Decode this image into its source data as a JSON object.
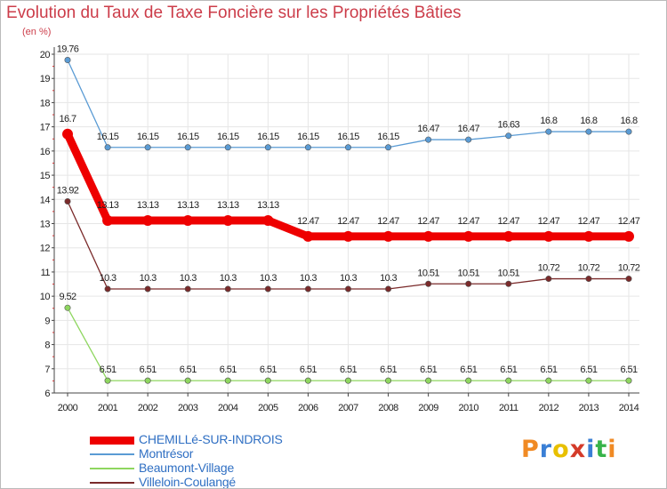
{
  "title": "Evolution du Taux de Taxe Foncière sur les Propriétés Bâties",
  "unit": "(en %)",
  "logo": {
    "text": "Proxiti",
    "letters": [
      "P",
      "r",
      "o",
      "x",
      "i",
      "t",
      "i"
    ],
    "colors": [
      "#f08a24",
      "#3a7fd5",
      "#e8c000",
      "#d43b2a",
      "#3a7fd5",
      "#38b44a",
      "#f08a24"
    ]
  },
  "chart_data": {
    "type": "line",
    "x": [
      "2000",
      "2001",
      "2002",
      "2003",
      "2004",
      "2005",
      "2006",
      "2007",
      "2008",
      "2009",
      "2010",
      "2011",
      "2012",
      "2013",
      "2014"
    ],
    "ylim": [
      6,
      20
    ],
    "yticks": [
      6,
      7,
      8,
      9,
      10,
      11,
      12,
      13,
      14,
      15,
      16,
      17,
      18,
      19,
      20
    ],
    "series": [
      {
        "name": "CHEMILLé-SUR-INDROIS",
        "color": "#ee0000",
        "width": "thick",
        "values": [
          16.7,
          13.13,
          13.13,
          13.13,
          13.13,
          13.13,
          12.47,
          12.47,
          12.47,
          12.47,
          12.47,
          12.47,
          12.47,
          12.47,
          12.47
        ],
        "labels": [
          "16.7",
          "13.13",
          "13.13",
          "13.13",
          "13.13",
          "13.13",
          "12.47",
          "12.47",
          "12.47",
          "12.47",
          "12.47",
          "12.47",
          "12.47",
          "12.47",
          "12.47"
        ]
      },
      {
        "name": "Montrésor",
        "color": "#5a9bd4",
        "width": "thin",
        "values": [
          19.76,
          16.15,
          16.15,
          16.15,
          16.15,
          16.15,
          16.15,
          16.15,
          16.15,
          16.47,
          16.47,
          16.63,
          16.8,
          16.8,
          16.8
        ],
        "labels": [
          "19.76",
          "16.15",
          "16.15",
          "16.15",
          "16.15",
          "16.15",
          "16.15",
          "16.15",
          "16.15",
          "16.47",
          "16.47",
          "16.63",
          "16.8",
          "16.8",
          "16.8"
        ]
      },
      {
        "name": "Beaumont-Village",
        "color": "#8ed65f",
        "width": "thin",
        "values": [
          9.52,
          6.51,
          6.51,
          6.51,
          6.51,
          6.51,
          6.51,
          6.51,
          6.51,
          6.51,
          6.51,
          6.51,
          6.51,
          6.51,
          6.51
        ],
        "labels": [
          "9.52",
          "6.51",
          "6.51",
          "6.51",
          "6.51",
          "6.51",
          "6.51",
          "6.51",
          "6.51",
          "6.51",
          "6.51",
          "6.51",
          "6.51",
          "6.51",
          "6.51"
        ]
      },
      {
        "name": "Villeloin-Coulangé",
        "color": "#7a2a2a",
        "width": "thin",
        "values": [
          13.92,
          10.3,
          10.3,
          10.3,
          10.3,
          10.3,
          10.3,
          10.3,
          10.3,
          10.51,
          10.51,
          10.51,
          10.72,
          10.72,
          10.72
        ],
        "labels": [
          "13.92",
          "10.3",
          "10.3",
          "10.3",
          "10.3",
          "10.3",
          "10.3",
          "10.3",
          "10.3",
          "10.51",
          "10.51",
          "10.51",
          "10.72",
          "10.72",
          "10.72"
        ]
      }
    ]
  }
}
